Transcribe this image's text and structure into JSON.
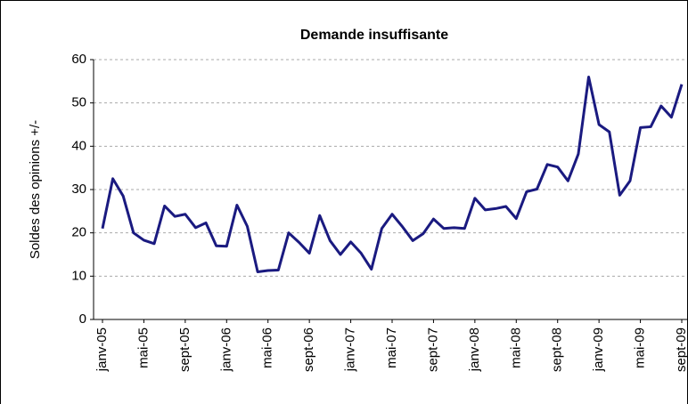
{
  "chart_data": {
    "type": "line",
    "title": "Demande insuffisante",
    "y_label": "Soldes des opinions +/-",
    "categories": [
      "janv-05",
      null,
      null,
      null,
      "mai-05",
      null,
      null,
      null,
      "sept-05",
      null,
      null,
      null,
      "janv-06",
      null,
      null,
      null,
      "mai-06",
      null,
      null,
      null,
      "sept-06",
      null,
      null,
      null,
      "janv-07",
      null,
      null,
      null,
      "mai-07",
      null,
      null,
      null,
      "sept-07",
      null,
      null,
      null,
      "janv-08",
      null,
      null,
      null,
      "mai-08",
      null,
      null,
      null,
      "sept-08",
      null,
      null,
      null,
      "janv-09",
      null,
      null,
      null,
      "mai-09",
      null,
      null,
      null,
      "sept-09"
    ],
    "series": [
      {
        "name": "Demande insuffisante",
        "color": "#1a1a80",
        "values": [
          21,
          32.5,
          28.5,
          20,
          18.3,
          17.5,
          26.2,
          23.8,
          24.3,
          21.2,
          22.3,
          17,
          16.9,
          26.4,
          21.5,
          11,
          11.3,
          11.4,
          20,
          17.8,
          15.3,
          24,
          18.2,
          15,
          17.9,
          15.3,
          11.6,
          21,
          24.3,
          21.4,
          18.2,
          19.8,
          23.2,
          21,
          21.2,
          21,
          28,
          25.3,
          25.6,
          26.1,
          23.3,
          29.5,
          30.1,
          35.8,
          35.2,
          32,
          38.2,
          56,
          45,
          43.3,
          28.7,
          32,
          44.3,
          44.5,
          49.3,
          46.7,
          54.3
        ]
      }
    ],
    "ylim": [
      0,
      60
    ],
    "yticks": [
      0,
      10,
      20,
      30,
      40,
      50,
      60
    ],
    "grid": true
  }
}
